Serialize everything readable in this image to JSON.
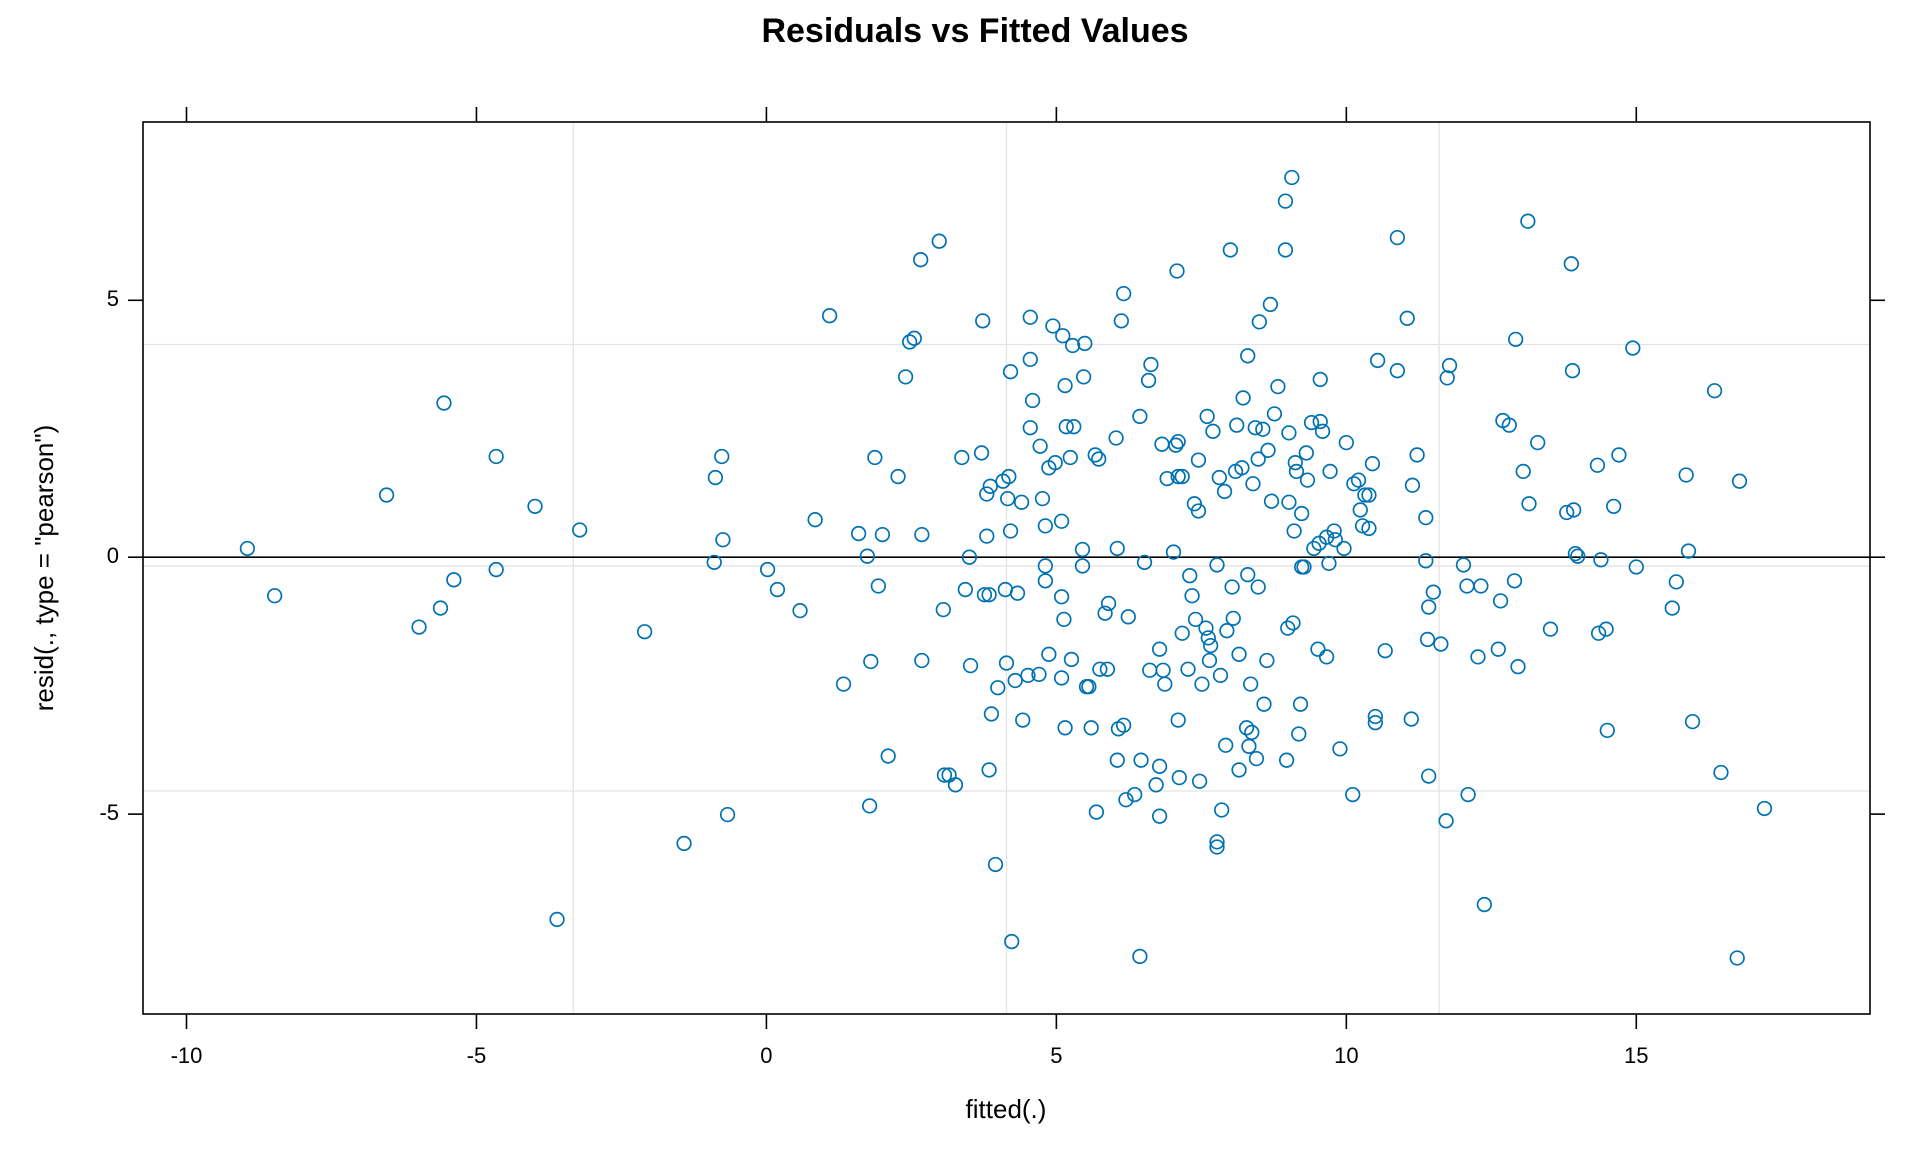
{
  "chart_data": {
    "type": "scatter",
    "title": "Residuals vs Fitted Values",
    "x_label": "fitted(.)",
    "y_label": "resid(., type = \"pearson\")",
    "color": "#0072b2",
    "xlim": [
      -10.75,
      19.03
    ],
    "ylim": [
      -8.89,
      8.47
    ],
    "xticks": [
      -10,
      -5,
      0,
      5,
      10,
      15
    ],
    "yticks": [
      -5,
      0,
      5
    ],
    "grid_lines": {
      "x": [
        -3.33,
        4.14,
        11.6
      ],
      "y": [
        -4.55,
        -0.17,
        4.14
      ]
    },
    "reference_line": 0,
    "x": [
      -8.95,
      -8.48,
      -6.55,
      -5.99,
      -5.62,
      -5.56,
      -5.39,
      -4.66,
      -4.66,
      -3.99,
      -3.61,
      -3.22,
      -2.1,
      -1.42,
      -0.9,
      -0.88,
      -0.77,
      -0.75,
      -0.67,
      0.02,
      0.19,
      0.58,
      0.84,
      1.09,
      1.33,
      1.59,
      1.74,
      1.78,
      1.8,
      1.87,
      1.93,
      2.0,
      2.1,
      2.27,
      2.4,
      2.47,
      2.55,
      2.66,
      2.68,
      2.68,
      2.98,
      3.05,
      3.07,
      3.15,
      3.26,
      3.37,
      3.43,
      3.5,
      3.52,
      3.71,
      3.73,
      3.76,
      3.8,
      3.8,
      3.84,
      3.84,
      3.86,
      3.88,
      3.95,
      3.99,
      4.08,
      4.12,
      4.14,
      4.16,
      4.18,
      4.21,
      4.21,
      4.23,
      4.29,
      4.33,
      4.4,
      4.42,
      4.51,
      4.55,
      4.55,
      4.55,
      4.59,
      4.7,
      4.72,
      4.76,
      4.81,
      4.81,
      4.81,
      4.87,
      4.87,
      4.94,
      4.98,
      5.09,
      5.09,
      5.09,
      5.11,
      5.13,
      5.15,
      5.15,
      5.17,
      5.24,
      5.26,
      5.28,
      5.3,
      5.45,
      5.45,
      5.47,
      5.49,
      5.52,
      5.56,
      5.6,
      5.67,
      5.69,
      5.73,
      5.75,
      5.84,
      5.88,
      5.9,
      6.03,
      6.05,
      6.05,
      6.07,
      6.12,
      6.16,
      6.16,
      6.2,
      6.24,
      6.35,
      6.44,
      6.46,
      6.44,
      6.52,
      6.59,
      6.61,
      6.63,
      6.72,
      6.78,
      6.78,
      6.78,
      6.82,
      6.84,
      6.87,
      6.91,
      7.02,
      7.06,
      7.08,
      7.1,
      7.1,
      7.1,
      7.12,
      7.17,
      7.17,
      7.27,
      7.3,
      7.34,
      7.38,
      7.4,
      7.45,
      7.45,
      7.47,
      7.51,
      7.58,
      7.6,
      7.62,
      7.64,
      7.66,
      7.7,
      7.77,
      7.77,
      7.77,
      7.81,
      7.83,
      7.85,
      7.9,
      7.92,
      7.94,
      8.0,
      8.03,
      8.05,
      8.09,
      8.11,
      8.15,
      8.15,
      8.2,
      8.22,
      8.28,
      8.3,
      8.3,
      8.32,
      8.35,
      8.37,
      8.39,
      8.43,
      8.45,
      8.48,
      8.48,
      8.5,
      8.56,
      8.58,
      8.63,
      8.65,
      8.69,
      8.71,
      8.76,
      8.82,
      8.95,
      8.95,
      8.97,
      8.99,
      9.01,
      9.01,
      9.06,
      9.08,
      9.1,
      9.12,
      9.14,
      9.18,
      9.21,
      9.23,
      9.23,
      9.27,
      9.31,
      9.33,
      9.4,
      9.44,
      9.51,
      9.53,
      9.55,
      9.55,
      9.59,
      9.66,
      9.66,
      9.7,
      9.72,
      9.79,
      9.81,
      9.89,
      9.96,
      10.0,
      10.11,
      10.13,
      10.21,
      10.24,
      10.28,
      10.32,
      10.39,
      10.39,
      10.45,
      10.5,
      10.5,
      10.54,
      10.67,
      10.88,
      10.88,
      11.05,
      11.12,
      11.14,
      11.22,
      11.37,
      11.37,
      11.4,
      11.42,
      11.42,
      11.5,
      11.63,
      11.72,
      11.74,
      11.78,
      12.02,
      12.08,
      12.1,
      12.27,
      12.32,
      12.38,
      12.62,
      12.66,
      12.7,
      12.81,
      12.9,
      12.92,
      12.96,
      13.05,
      13.13,
      13.15,
      13.3,
      13.52,
      13.8,
      13.88,
      13.9,
      13.92,
      13.95,
      13.99,
      14.33,
      14.35,
      14.39,
      14.48,
      14.5,
      14.61,
      14.7,
      14.94,
      15.0,
      15.62,
      15.69,
      15.86,
      15.9,
      15.97,
      16.35,
      16.46,
      16.74,
      16.78,
      17.21
    ],
    "y": [
      0.17,
      -0.75,
      1.21,
      -1.36,
      -0.99,
      3.0,
      -0.44,
      1.96,
      -0.24,
      0.99,
      -7.05,
      0.53,
      -1.45,
      -5.57,
      -0.1,
      1.55,
      1.96,
      0.34,
      -5.01,
      -0.24,
      -0.63,
      -1.04,
      0.73,
      4.7,
      -2.47,
      0.46,
      0.02,
      -4.84,
      -2.03,
      1.94,
      -0.56,
      0.44,
      -3.87,
      1.57,
      3.51,
      4.19,
      4.26,
      5.79,
      0.44,
      -2.01,
      6.15,
      -1.02,
      -4.24,
      -4.24,
      -4.43,
      1.94,
      -0.63,
      0.0,
      -2.11,
      2.03,
      4.6,
      -0.73,
      1.23,
      0.41,
      -0.73,
      -4.14,
      1.38,
      -3.05,
      -5.98,
      -2.54,
      1.48,
      -0.63,
      -2.06,
      1.14,
      1.57,
      3.61,
      0.51,
      -7.48,
      -2.4,
      -0.7,
      1.07,
      -3.17,
      -2.3,
      3.85,
      4.67,
      2.52,
      3.05,
      -2.28,
      2.16,
      1.14,
      -0.17,
      -0.46,
      0.61,
      -1.89,
      1.74,
      4.5,
      1.84,
      0.7,
      -0.77,
      -2.35,
      4.31,
      -1.21,
      3.34,
      -3.32,
      2.54,
      1.94,
      -1.99,
      4.12,
      2.54,
      0.15,
      -0.17,
      3.51,
      4.16,
      -2.52,
      -2.52,
      -3.32,
      1.99,
      -4.96,
      1.91,
      -2.18,
      -1.09,
      -2.18,
      -0.9,
      2.32,
      -3.95,
      0.17,
      -3.34,
      4.6,
      5.13,
      -3.27,
      -4.72,
      -1.16,
      -4.62,
      2.74,
      -3.95,
      -7.77,
      -0.1,
      3.44,
      -2.2,
      3.75,
      -4.43,
      -4.07,
      -5.04,
      -1.79,
      2.2,
      -2.2,
      -2.47,
      1.53,
      0.1,
      2.18,
      5.57,
      1.57,
      -3.17,
      2.25,
      -4.29,
      1.57,
      -1.48,
      -2.18,
      -0.36,
      -0.75,
      1.04,
      -1.21,
      1.89,
      0.9,
      -4.36,
      -2.47,
      -1.38,
      2.74,
      -1.57,
      -2.01,
      -1.72,
      2.45,
      -0.15,
      -5.54,
      -5.64,
      1.55,
      -2.3,
      -4.92,
      1.28,
      -3.66,
      -1.43,
      5.98,
      -0.58,
      -1.19,
      1.67,
      2.57,
      -1.89,
      -4.14,
      1.74,
      3.1,
      -3.32,
      -0.34,
      3.92,
      -3.68,
      -2.47,
      -3.41,
      1.43,
      2.52,
      -3.92,
      -0.58,
      1.91,
      4.58,
      2.49,
      -2.86,
      -2.01,
      2.08,
      4.92,
      1.09,
      2.79,
      3.32,
      5.98,
      6.93,
      -3.95,
      -1.38,
      1.07,
      2.42,
      7.39,
      -1.28,
      0.51,
      1.84,
      1.67,
      -3.44,
      -2.86,
      0.85,
      -0.19,
      -0.19,
      2.03,
      1.5,
      2.62,
      0.17,
      -1.79,
      0.27,
      3.46,
      2.64,
      2.45,
      0.39,
      -1.94,
      -0.12,
      1.67,
      0.51,
      0.34,
      -3.73,
      0.17,
      2.23,
      -4.62,
      1.43,
      1.5,
      0.92,
      0.61,
      1.21,
      0.56,
      1.21,
      1.82,
      -3.1,
      -3.22,
      3.83,
      -1.82,
      3.63,
      6.22,
      4.65,
      -3.15,
      1.4,
      1.99,
      0.77,
      -0.07,
      -1.6,
      -0.97,
      -4.26,
      -0.68,
      -1.69,
      -5.13,
      3.49,
      3.73,
      -0.15,
      -0.56,
      -4.62,
      -1.94,
      -0.56,
      -6.76,
      -1.79,
      -0.85,
      2.66,
      2.57,
      -0.46,
      4.24,
      -2.13,
      1.67,
      6.54,
      1.04,
      2.23,
      -1.4,
      0.87,
      5.71,
      3.63,
      0.92,
      0.07,
      0.02,
      1.79,
      -1.48,
      -0.05,
      -1.4,
      -3.37,
      0.99,
      1.99,
      4.07,
      -0.19,
      -0.99,
      -0.48,
      1.6,
      0.12,
      -3.2,
      3.24,
      -4.19,
      -7.8,
      1.48,
      -4.89
    ]
  }
}
